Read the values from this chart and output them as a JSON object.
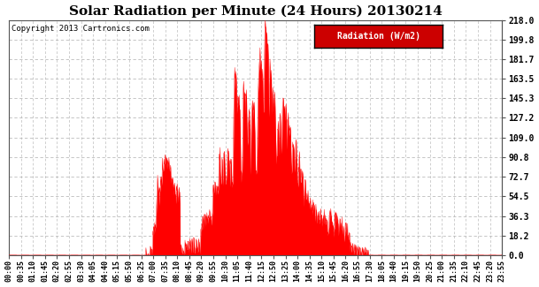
{
  "title": "Solar Radiation per Minute (24 Hours) 20130214",
  "copyright_text": "Copyright 2013 Cartronics.com",
  "legend_label": "Radiation (W/m2)",
  "bg_color": "#ffffff",
  "plot_bg_color": "#ffffff",
  "grid_color": "#aaaaaa",
  "fill_color": "#ff0000",
  "line_color": "#ff0000",
  "dashed_line_color": "#ff0000",
  "legend_bg": "#cc0000",
  "legend_text_color": "#ffffff",
  "ylim": [
    0.0,
    218.0
  ],
  "yticks": [
    0.0,
    18.2,
    36.3,
    54.5,
    72.7,
    90.8,
    109.0,
    127.2,
    145.3,
    163.5,
    181.7,
    199.8,
    218.0
  ],
  "x_tick_labels": [
    "00:00",
    "00:35",
    "01:10",
    "01:45",
    "02:20",
    "02:55",
    "03:30",
    "04:05",
    "04:40",
    "05:15",
    "05:50",
    "06:25",
    "07:00",
    "07:35",
    "08:10",
    "08:45",
    "09:20",
    "09:55",
    "10:30",
    "11:05",
    "11:40",
    "12:15",
    "12:50",
    "13:25",
    "14:00",
    "14:35",
    "15:10",
    "15:45",
    "16:20",
    "16:55",
    "17:30",
    "18:05",
    "18:40",
    "19:15",
    "19:50",
    "20:25",
    "21:00",
    "21:35",
    "22:10",
    "22:45",
    "23:20",
    "23:55"
  ],
  "n_points": 1440,
  "sunrise_minute": 398,
  "sunset_minute": 1050
}
